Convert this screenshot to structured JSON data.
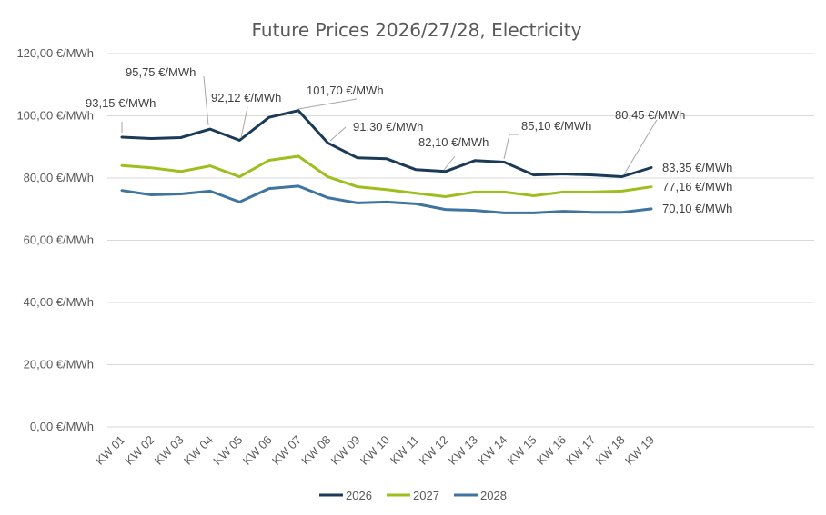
{
  "chart_data": {
    "type": "line",
    "title": "Future Prices 2026/27/28, Electricity",
    "categories": [
      "KW 01",
      "KW 02",
      "KW 03",
      "KW 04",
      "KW 05",
      "KW 06",
      "KW 07",
      "KW 08",
      "KW 09",
      "KW 10",
      "KW 11",
      "KW 12",
      "KW 13",
      "KW 14",
      "KW 15",
      "KW 16",
      "KW 17",
      "KW 18",
      "KW 19"
    ],
    "ylim": [
      0,
      120
    ],
    "yticks": [
      0,
      20,
      40,
      60,
      80,
      100,
      120
    ],
    "ytick_labels": [
      "0,00 €/MWh",
      "20,00 €/MWh",
      "40,00 €/MWh",
      "60,00 €/MWh",
      "80,00 €/MWh",
      "100,00 €/MWh",
      "120,00 €/MWh"
    ],
    "grid": true,
    "legend_position": "bottom",
    "series": [
      {
        "name": "2026",
        "color": "#1b3a57",
        "values": [
          93.15,
          92.7,
          93.0,
          95.75,
          92.12,
          99.5,
          101.7,
          91.3,
          86.5,
          86.2,
          82.7,
          82.1,
          85.6,
          85.1,
          81.0,
          81.3,
          81.0,
          80.45,
          83.35
        ]
      },
      {
        "name": "2027",
        "color": "#9cbf1e",
        "values": [
          84.0,
          83.3,
          82.1,
          83.9,
          80.4,
          85.7,
          87.0,
          80.4,
          77.2,
          76.3,
          75.1,
          74.0,
          75.5,
          75.5,
          74.3,
          75.5,
          75.5,
          75.8,
          77.16
        ]
      },
      {
        "name": "2028",
        "color": "#3f74a0",
        "values": [
          76.0,
          74.6,
          74.9,
          75.8,
          72.3,
          76.6,
          77.4,
          73.7,
          72.0,
          72.3,
          71.7,
          69.9,
          69.6,
          68.8,
          68.8,
          69.3,
          69.0,
          69.0,
          70.1
        ]
      }
    ],
    "annotations": [
      {
        "series": 0,
        "index": 0,
        "text": "93,15 €/MWh"
      },
      {
        "series": 0,
        "index": 3,
        "text": "95,75 €/MWh"
      },
      {
        "series": 0,
        "index": 4,
        "text": "92,12 €/MWh"
      },
      {
        "series": 0,
        "index": 6,
        "text": "101,70 €/MWh"
      },
      {
        "series": 0,
        "index": 7,
        "text": "91,30 €/MWh"
      },
      {
        "series": 0,
        "index": 11,
        "text": "82,10 €/MWh"
      },
      {
        "series": 0,
        "index": 13,
        "text": "85,10 €/MWh"
      },
      {
        "series": 0,
        "index": 17,
        "text": "80,45 €/MWh"
      },
      {
        "series": 0,
        "index": 18,
        "text": "83,35 €/MWh"
      },
      {
        "series": 1,
        "index": 18,
        "text": "77,16 €/MWh"
      },
      {
        "series": 2,
        "index": 18,
        "text": "70,10 €/MWh"
      }
    ]
  }
}
